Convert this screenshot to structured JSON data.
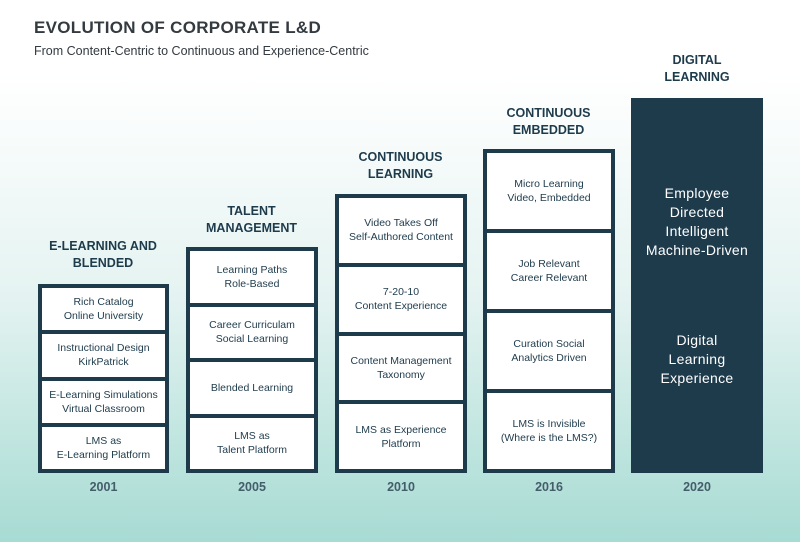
{
  "title": "EVOLUTION OF CORPORATE L&D",
  "subtitle": "From Content-Centric to Continuous and Experience-Centric",
  "eras": [
    {
      "title": "E-LEARNING AND\nBLENDED",
      "year": "2001",
      "boxes": [
        "Rich Catalog\nOnline University",
        "Instructional Design\nKirkPatrick",
        "E-Learning Simulations\nVirtual Classroom",
        "LMS as\nE-Learning Platform"
      ]
    },
    {
      "title": "TALENT\nMANAGEMENT",
      "year": "2005",
      "boxes": [
        "Learning Paths\nRole-Based",
        "Career Curriculam\nSocial Learning",
        "Blended Learning",
        "LMS as\nTalent Platform"
      ]
    },
    {
      "title": "CONTINUOUS\nLEARNING",
      "year": "2010",
      "boxes": [
        "Video Takes Off\nSelf-Authored Content",
        "7-20-10\nContent Experience",
        "Content Management\nTaxonomy",
        "LMS as Experience\nPlatform"
      ]
    },
    {
      "title": "CONTINUOUS\nEMBEDDED",
      "year": "2016",
      "boxes": [
        "Micro Learning\nVideo, Embedded",
        "Job Relevant\nCareer Relevant",
        "Curation Social\nAnalytics Driven",
        "LMS is Invisible\n(Where is the LMS?)"
      ]
    },
    {
      "title": "DIGITAL\nLEARNING",
      "year": "2020",
      "texts": [
        "Employee\nDirected\nIntelligent\nMachine-Driven",
        "Digital\nLearning\nExperience"
      ]
    }
  ]
}
